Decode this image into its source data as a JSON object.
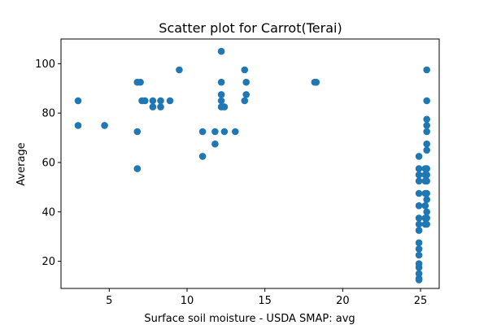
{
  "chart_data": {
    "type": "scatter",
    "title": "Scatter plot for Carrot(Terai)",
    "xlabel": "Surface soil moisture - USDA SMAP: avg",
    "ylabel": "Average",
    "xlim": [
      1.9,
      26.2
    ],
    "ylim": [
      9,
      110
    ],
    "xticks": [
      5,
      10,
      15,
      20,
      25
    ],
    "yticks": [
      20,
      40,
      60,
      80,
      100
    ],
    "grid": false,
    "marker_color": "#1f77b4",
    "series": [
      {
        "points": [
          [
            3.0,
            85.0
          ],
          [
            3.0,
            75.0
          ],
          [
            4.7,
            75.0
          ],
          [
            6.8,
            92.5
          ],
          [
            6.8,
            72.5
          ],
          [
            6.8,
            57.5
          ],
          [
            7.0,
            92.5
          ],
          [
            7.1,
            85.0
          ],
          [
            7.3,
            85.0
          ],
          [
            7.8,
            85.0
          ],
          [
            7.8,
            82.5
          ],
          [
            8.3,
            85.0
          ],
          [
            8.3,
            82.5
          ],
          [
            8.9,
            85.0
          ],
          [
            9.5,
            97.5
          ],
          [
            11.0,
            72.5
          ],
          [
            11.0,
            62.5
          ],
          [
            11.8,
            72.5
          ],
          [
            11.8,
            67.5
          ],
          [
            12.2,
            105.0
          ],
          [
            12.2,
            92.5
          ],
          [
            12.2,
            87.5
          ],
          [
            12.2,
            85.0
          ],
          [
            12.2,
            82.5
          ],
          [
            12.4,
            82.5
          ],
          [
            12.4,
            72.5
          ],
          [
            13.1,
            72.5
          ],
          [
            13.7,
            97.5
          ],
          [
            13.7,
            85.0
          ],
          [
            13.8,
            92.5
          ],
          [
            13.8,
            87.5
          ],
          [
            18.2,
            92.5
          ],
          [
            18.3,
            92.5
          ],
          [
            24.9,
            62.5
          ],
          [
            24.9,
            57.5
          ],
          [
            24.9,
            55.0
          ],
          [
            24.9,
            52.5
          ],
          [
            24.9,
            47.5
          ],
          [
            24.9,
            42.5
          ],
          [
            24.9,
            37.5
          ],
          [
            24.9,
            35.0
          ],
          [
            24.9,
            32.5
          ],
          [
            24.9,
            27.5
          ],
          [
            24.9,
            25.0
          ],
          [
            24.9,
            22.5
          ],
          [
            24.9,
            19.0
          ],
          [
            24.9,
            17.5
          ],
          [
            24.9,
            15.0
          ],
          [
            24.9,
            13.0
          ],
          [
            24.9,
            12.5
          ],
          [
            25.3,
            57.5
          ],
          [
            25.3,
            55.0
          ],
          [
            25.3,
            52.5
          ],
          [
            25.3,
            47.5
          ],
          [
            25.3,
            42.5
          ],
          [
            25.3,
            37.5
          ],
          [
            25.3,
            35.0
          ],
          [
            25.4,
            97.5
          ],
          [
            25.4,
            85.0
          ],
          [
            25.4,
            77.5
          ],
          [
            25.4,
            75.0
          ],
          [
            25.4,
            72.5
          ],
          [
            25.4,
            67.5
          ],
          [
            25.4,
            65.0
          ],
          [
            25.4,
            57.5
          ],
          [
            25.4,
            55.0
          ],
          [
            25.4,
            52.5
          ],
          [
            25.4,
            47.5
          ],
          [
            25.4,
            45.0
          ],
          [
            25.4,
            40.0
          ],
          [
            25.4,
            37.5
          ],
          [
            25.4,
            35.0
          ]
        ]
      }
    ]
  }
}
